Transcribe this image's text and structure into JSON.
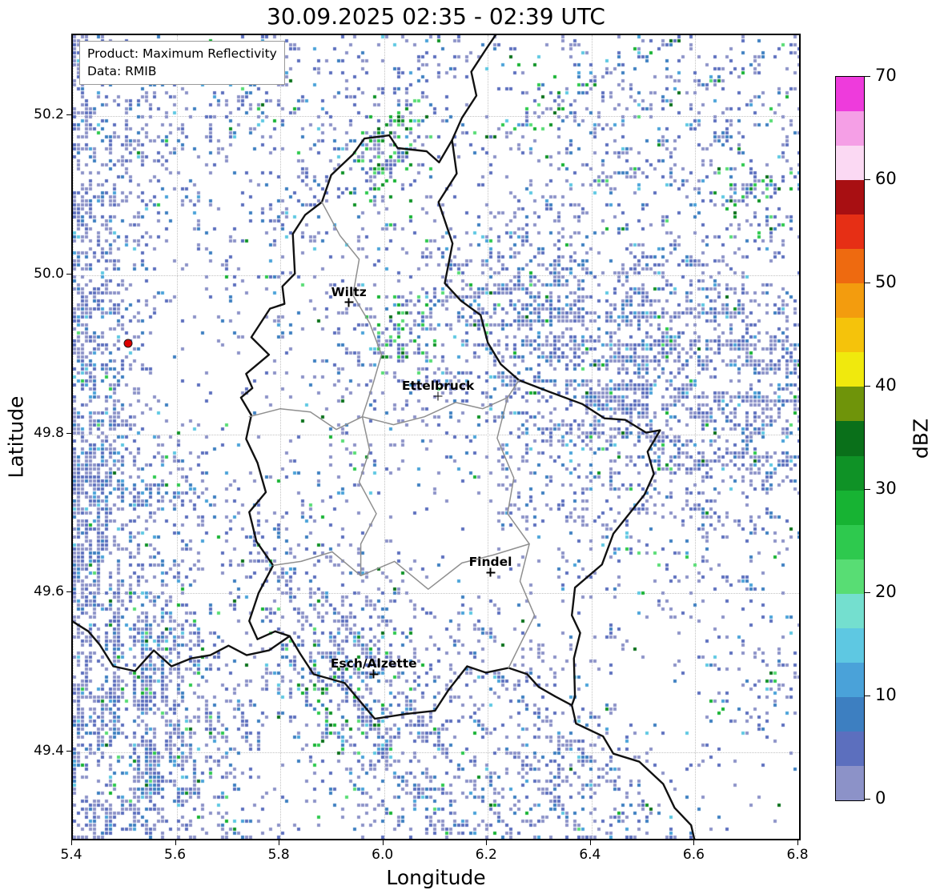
{
  "title": "30.09.2025 02:35 - 02:39 UTC",
  "info_box": {
    "product_line": "Product: Maximum Reflectivity",
    "data_line": "Data: RMIB"
  },
  "axes": {
    "xlabel": "Longitude",
    "ylabel": "Latitude",
    "x_range": [
      5.4,
      6.8
    ],
    "y_range": [
      49.291,
      50.302
    ],
    "x_ticks": [
      5.4,
      5.6,
      5.8,
      6.0,
      6.2,
      6.4,
      6.6,
      6.8
    ],
    "y_ticks": [
      49.4,
      49.6,
      49.8,
      50.0,
      50.2
    ]
  },
  "colorbar": {
    "label": "dBZ",
    "min": 0,
    "max": 70,
    "ticks": [
      0,
      10,
      20,
      30,
      40,
      50,
      60,
      70
    ],
    "colors": [
      "#8c92c8",
      "#5c6fbe",
      "#3d7fc1",
      "#4aa2d9",
      "#5ec8e2",
      "#74dfcf",
      "#58dd74",
      "#2ec94e",
      "#17b333",
      "#0f9226",
      "#0a701a",
      "#6f940a",
      "#f0e90d",
      "#f5c30b",
      "#f39c0e",
      "#ee6a10",
      "#e62f15",
      "#a80f12",
      "#fbd9f3",
      "#f59fe6",
      "#ee3bdc"
    ]
  },
  "cities": [
    {
      "name": "Wiltz",
      "lon": 5.932,
      "lat": 49.966
    },
    {
      "name": "Ettelbruck",
      "lon": 6.104,
      "lat": 49.848
    },
    {
      "name": "Findel",
      "lon": 6.205,
      "lat": 49.626
    },
    {
      "name": "Esch/Alzette",
      "lon": 5.98,
      "lat": 49.498
    }
  ],
  "radar_site": {
    "lon": 5.506,
    "lat": 49.914,
    "fill": "#dc0000",
    "edge": "#1a1a1a"
  },
  "borders": {
    "country": [
      [
        [
          6.131,
          50.17
        ],
        [
          6.14,
          50.128
        ],
        [
          6.105,
          50.092
        ],
        [
          6.132,
          50.04
        ],
        [
          6.117,
          49.99
        ],
        [
          6.148,
          49.968
        ],
        [
          6.186,
          49.95
        ],
        [
          6.2,
          49.915
        ],
        [
          6.225,
          49.888
        ],
        [
          6.26,
          49.868
        ],
        [
          6.32,
          49.853
        ],
        [
          6.382,
          49.838
        ],
        [
          6.425,
          49.82
        ],
        [
          6.465,
          49.818
        ],
        [
          6.505,
          49.802
        ],
        [
          6.532,
          49.805
        ],
        [
          6.508,
          49.778
        ],
        [
          6.52,
          49.75
        ],
        [
          6.502,
          49.724
        ],
        [
          6.442,
          49.675
        ],
        [
          6.42,
          49.636
        ],
        [
          6.368,
          49.607
        ],
        [
          6.362,
          49.572
        ],
        [
          6.378,
          49.55
        ],
        [
          6.366,
          49.518
        ],
        [
          6.368,
          49.47
        ],
        [
          6.362,
          49.459
        ],
        [
          6.33,
          49.47
        ],
        [
          6.298,
          49.482
        ],
        [
          6.276,
          49.498
        ],
        [
          6.24,
          49.506
        ],
        [
          6.196,
          49.5
        ],
        [
          6.16,
          49.508
        ],
        [
          6.124,
          49.478
        ],
        [
          6.098,
          49.452
        ],
        [
          6.042,
          49.448
        ],
        [
          5.982,
          49.442
        ],
        [
          5.924,
          49.487
        ],
        [
          5.864,
          49.498
        ],
        [
          5.838,
          49.524
        ],
        [
          5.818,
          49.546
        ],
        [
          5.79,
          49.552
        ],
        [
          5.756,
          49.542
        ],
        [
          5.74,
          49.565
        ],
        [
          5.758,
          49.6
        ],
        [
          5.786,
          49.635
        ],
        [
          5.754,
          49.665
        ],
        [
          5.74,
          49.702
        ],
        [
          5.772,
          49.727
        ],
        [
          5.756,
          49.764
        ],
        [
          5.734,
          49.794
        ],
        [
          5.744,
          49.824
        ],
        [
          5.724,
          49.846
        ],
        [
          5.746,
          49.858
        ],
        [
          5.734,
          49.876
        ],
        [
          5.778,
          49.9
        ],
        [
          5.744,
          49.922
        ],
        [
          5.78,
          49.958
        ],
        [
          5.808,
          49.964
        ],
        [
          5.804,
          49.986
        ],
        [
          5.828,
          50.002
        ],
        [
          5.824,
          50.052
        ],
        [
          5.848,
          50.076
        ],
        [
          5.88,
          50.092
        ],
        [
          5.898,
          50.126
        ],
        [
          5.94,
          50.152
        ],
        [
          5.962,
          50.172
        ],
        [
          6.01,
          50.176
        ],
        [
          6.026,
          50.16
        ],
        [
          6.082,
          50.156
        ],
        [
          6.106,
          50.142
        ],
        [
          6.131,
          50.17
        ]
      ],
      [
        [
          6.131,
          50.17
        ],
        [
          6.15,
          50.198
        ],
        [
          6.178,
          50.226
        ],
        [
          6.168,
          50.256
        ],
        [
          6.196,
          50.284
        ],
        [
          6.225,
          50.312
        ]
      ],
      [
        [
          6.362,
          49.459
        ],
        [
          6.37,
          49.436
        ],
        [
          6.422,
          49.42
        ],
        [
          6.442,
          49.398
        ],
        [
          6.492,
          49.388
        ],
        [
          6.538,
          49.36
        ],
        [
          6.56,
          49.33
        ],
        [
          6.592,
          49.308
        ],
        [
          6.6,
          49.285
        ]
      ],
      [
        [
          5.818,
          49.546
        ],
        [
          5.778,
          49.528
        ],
        [
          5.735,
          49.522
        ],
        [
          5.7,
          49.534
        ],
        [
          5.665,
          49.522
        ],
        [
          5.628,
          49.518
        ],
        [
          5.59,
          49.508
        ],
        [
          5.556,
          49.528
        ],
        [
          5.52,
          49.502
        ],
        [
          5.478,
          49.508
        ],
        [
          5.452,
          49.535
        ],
        [
          5.43,
          49.552
        ],
        [
          5.398,
          49.565
        ]
      ]
    ],
    "district": [
      [
        [
          5.74,
          49.822
        ],
        [
          5.8,
          49.832
        ],
        [
          5.858,
          49.828
        ],
        [
          5.908,
          49.806
        ],
        [
          5.958,
          49.822
        ],
        [
          6.018,
          49.812
        ],
        [
          6.078,
          49.822
        ],
        [
          6.138,
          49.84
        ],
        [
          6.19,
          49.832
        ],
        [
          6.238,
          49.846
        ],
        [
          6.26,
          49.868
        ]
      ],
      [
        [
          5.88,
          50.092
        ],
        [
          5.915,
          50.05
        ],
        [
          5.952,
          50.02
        ],
        [
          5.94,
          49.975
        ],
        [
          5.972,
          49.94
        ],
        [
          5.995,
          49.9
        ],
        [
          5.978,
          49.862
        ],
        [
          5.958,
          49.822
        ]
      ],
      [
        [
          6.238,
          49.846
        ],
        [
          6.218,
          49.795
        ],
        [
          6.25,
          49.745
        ],
        [
          6.238,
          49.7
        ],
        [
          6.28,
          49.662
        ],
        [
          6.262,
          49.615
        ],
        [
          6.29,
          49.572
        ],
        [
          6.258,
          49.53
        ],
        [
          6.24,
          49.506
        ]
      ],
      [
        [
          5.786,
          49.635
        ],
        [
          5.84,
          49.64
        ],
        [
          5.9,
          49.652
        ],
        [
          5.955,
          49.622
        ],
        [
          6.02,
          49.64
        ],
        [
          6.085,
          49.605
        ],
        [
          6.15,
          49.638
        ],
        [
          6.21,
          49.648
        ],
        [
          6.28,
          49.662
        ]
      ],
      [
        [
          5.958,
          49.822
        ],
        [
          5.972,
          49.78
        ],
        [
          5.952,
          49.74
        ],
        [
          5.985,
          49.7
        ],
        [
          5.955,
          49.662
        ],
        [
          5.955,
          49.622
        ]
      ]
    ]
  },
  "echoes": {
    "seed": 1337,
    "cell": 5,
    "base_density": 0.02,
    "gain": 1.15,
    "regions": [
      {
        "lon": 5.36,
        "lat": 49.8,
        "rlon": 0.14,
        "rlat": 0.85,
        "angle": 0,
        "density": 0.85,
        "green": 0.01
      },
      {
        "lon": 5.5,
        "lat": 49.73,
        "rlon": 0.14,
        "rlat": 0.09,
        "angle": 10,
        "density": 0.4,
        "green": 0.02
      },
      {
        "lon": 5.52,
        "lat": 49.46,
        "rlon": 0.26,
        "rlat": 0.18,
        "angle": -60,
        "density": 0.6,
        "green": 0.05
      },
      {
        "lon": 6.0,
        "lat": 49.45,
        "rlon": 0.38,
        "rlat": 0.13,
        "angle": -40,
        "density": 0.35,
        "green": 0.06
      },
      {
        "lon": 6.55,
        "lat": 49.88,
        "rlon": 0.5,
        "rlat": 0.15,
        "angle": -5,
        "density": 0.55,
        "green": 0.03
      },
      {
        "lon": 6.25,
        "lat": 49.97,
        "rlon": 0.22,
        "rlat": 0.11,
        "angle": 5,
        "density": 0.45,
        "green": 0.05
      },
      {
        "lon": 6.55,
        "lat": 50.18,
        "rlon": 0.38,
        "rlat": 0.2,
        "angle": 15,
        "density": 0.2,
        "green": 0.04
      },
      {
        "lon": 5.95,
        "lat": 50.2,
        "rlon": 0.4,
        "rlat": 0.15,
        "angle": 33,
        "density": 0.18,
        "green": 0.04
      },
      {
        "lon": 6.0,
        "lat": 49.97,
        "rlon": 0.28,
        "rlat": 0.22,
        "angle": 0,
        "density": 0.14,
        "green": 0.07
      },
      {
        "lon": 6.5,
        "lat": 49.7,
        "rlon": 0.28,
        "rlat": 0.13,
        "angle": -12,
        "density": 0.22,
        "green": 0.04
      },
      {
        "lon": 6.33,
        "lat": 49.38,
        "rlon": 0.28,
        "rlat": 0.11,
        "angle": -35,
        "density": 0.3,
        "green": 0.03
      },
      {
        "lon": 5.95,
        "lat": 49.5,
        "rlon": 0.17,
        "rlat": 0.11,
        "angle": -43,
        "density": 0.45,
        "green": 0.1
      },
      {
        "lon": 6.72,
        "lat": 49.47,
        "rlon": 0.12,
        "rlat": 0.08,
        "angle": -30,
        "density": 0.18,
        "green": 0.05
      },
      {
        "lon": 5.48,
        "lat": 50.17,
        "rlon": 0.14,
        "rlat": 0.1,
        "angle": 0,
        "density": 0.35,
        "green": 0.03
      },
      {
        "lon": 5.75,
        "lat": 50.24,
        "rlon": 0.25,
        "rlat": 0.1,
        "angle": 53,
        "density": 0.22,
        "green": 0.04
      },
      {
        "lon": 6.05,
        "lat": 49.93,
        "rlon": 0.06,
        "rlat": 0.08,
        "angle": -80,
        "density": 0.5,
        "green": 0.35
      },
      {
        "lon": 6.29,
        "lat": 49.86,
        "rlon": 0.05,
        "rlat": 0.06,
        "angle": 0,
        "density": 0.4,
        "green": 0.3
      },
      {
        "lon": 5.9,
        "lat": 49.45,
        "rlon": 0.08,
        "rlat": 0.05,
        "angle": -30,
        "density": 0.5,
        "green": 0.3
      },
      {
        "lon": 6.0,
        "lat": 50.16,
        "rlon": 0.07,
        "rlat": 0.09,
        "angle": -60,
        "density": 0.45,
        "green": 0.3
      },
      {
        "lon": 6.28,
        "lat": 50.2,
        "rlon": 0.05,
        "rlat": 0.07,
        "angle": -60,
        "density": 0.4,
        "green": 0.3
      },
      {
        "lon": 6.7,
        "lat": 50.1,
        "rlon": 0.09,
        "rlat": 0.07,
        "angle": -40,
        "density": 0.3,
        "green": 0.25
      },
      {
        "lon": 6.45,
        "lat": 49.76,
        "rlon": 0.05,
        "rlat": 0.05,
        "angle": -40,
        "density": 0.4,
        "green": 0.25
      }
    ]
  },
  "chart_data": {
    "type": "heatmap",
    "title": "30.09.2025 02:35 - 02:39 UTC",
    "xlabel": "Longitude",
    "ylabel": "Latitude",
    "xlim": [
      5.4,
      6.8
    ],
    "ylim": [
      49.29,
      50.3
    ],
    "grid": true,
    "legend_position": "right-colorbar",
    "colorbar": {
      "label": "dBZ",
      "min": 0,
      "max": 70,
      "ticks": [
        0,
        10,
        20,
        30,
        40,
        50,
        60,
        70
      ]
    },
    "product": "Maximum Reflectivity",
    "source": "RMIB",
    "annotations": [
      {
        "label": "Wiltz",
        "x": 5.932,
        "y": 49.966
      },
      {
        "label": "Ettelbruck",
        "x": 6.104,
        "y": 49.848
      },
      {
        "label": "Findel",
        "x": 6.205,
        "y": 49.626
      },
      {
        "label": "Esch/Alzette",
        "x": 5.98,
        "y": 49.498
      },
      {
        "label": "radar-site-dot",
        "x": 5.506,
        "y": 49.914
      }
    ],
    "observed_reflectivity_dbz": [
      0,
      25
    ],
    "summary": "Scattered weak radar echoes (mostly 0-15 dBZ, isolated 15-30 dBZ green cells) over and around Luxembourg; dense speckle along the western map edge and southwest, an ENE-oriented band of 0-10 dBZ echoes across the east/northeast, and diagonal streaks in the south and northeast."
  }
}
